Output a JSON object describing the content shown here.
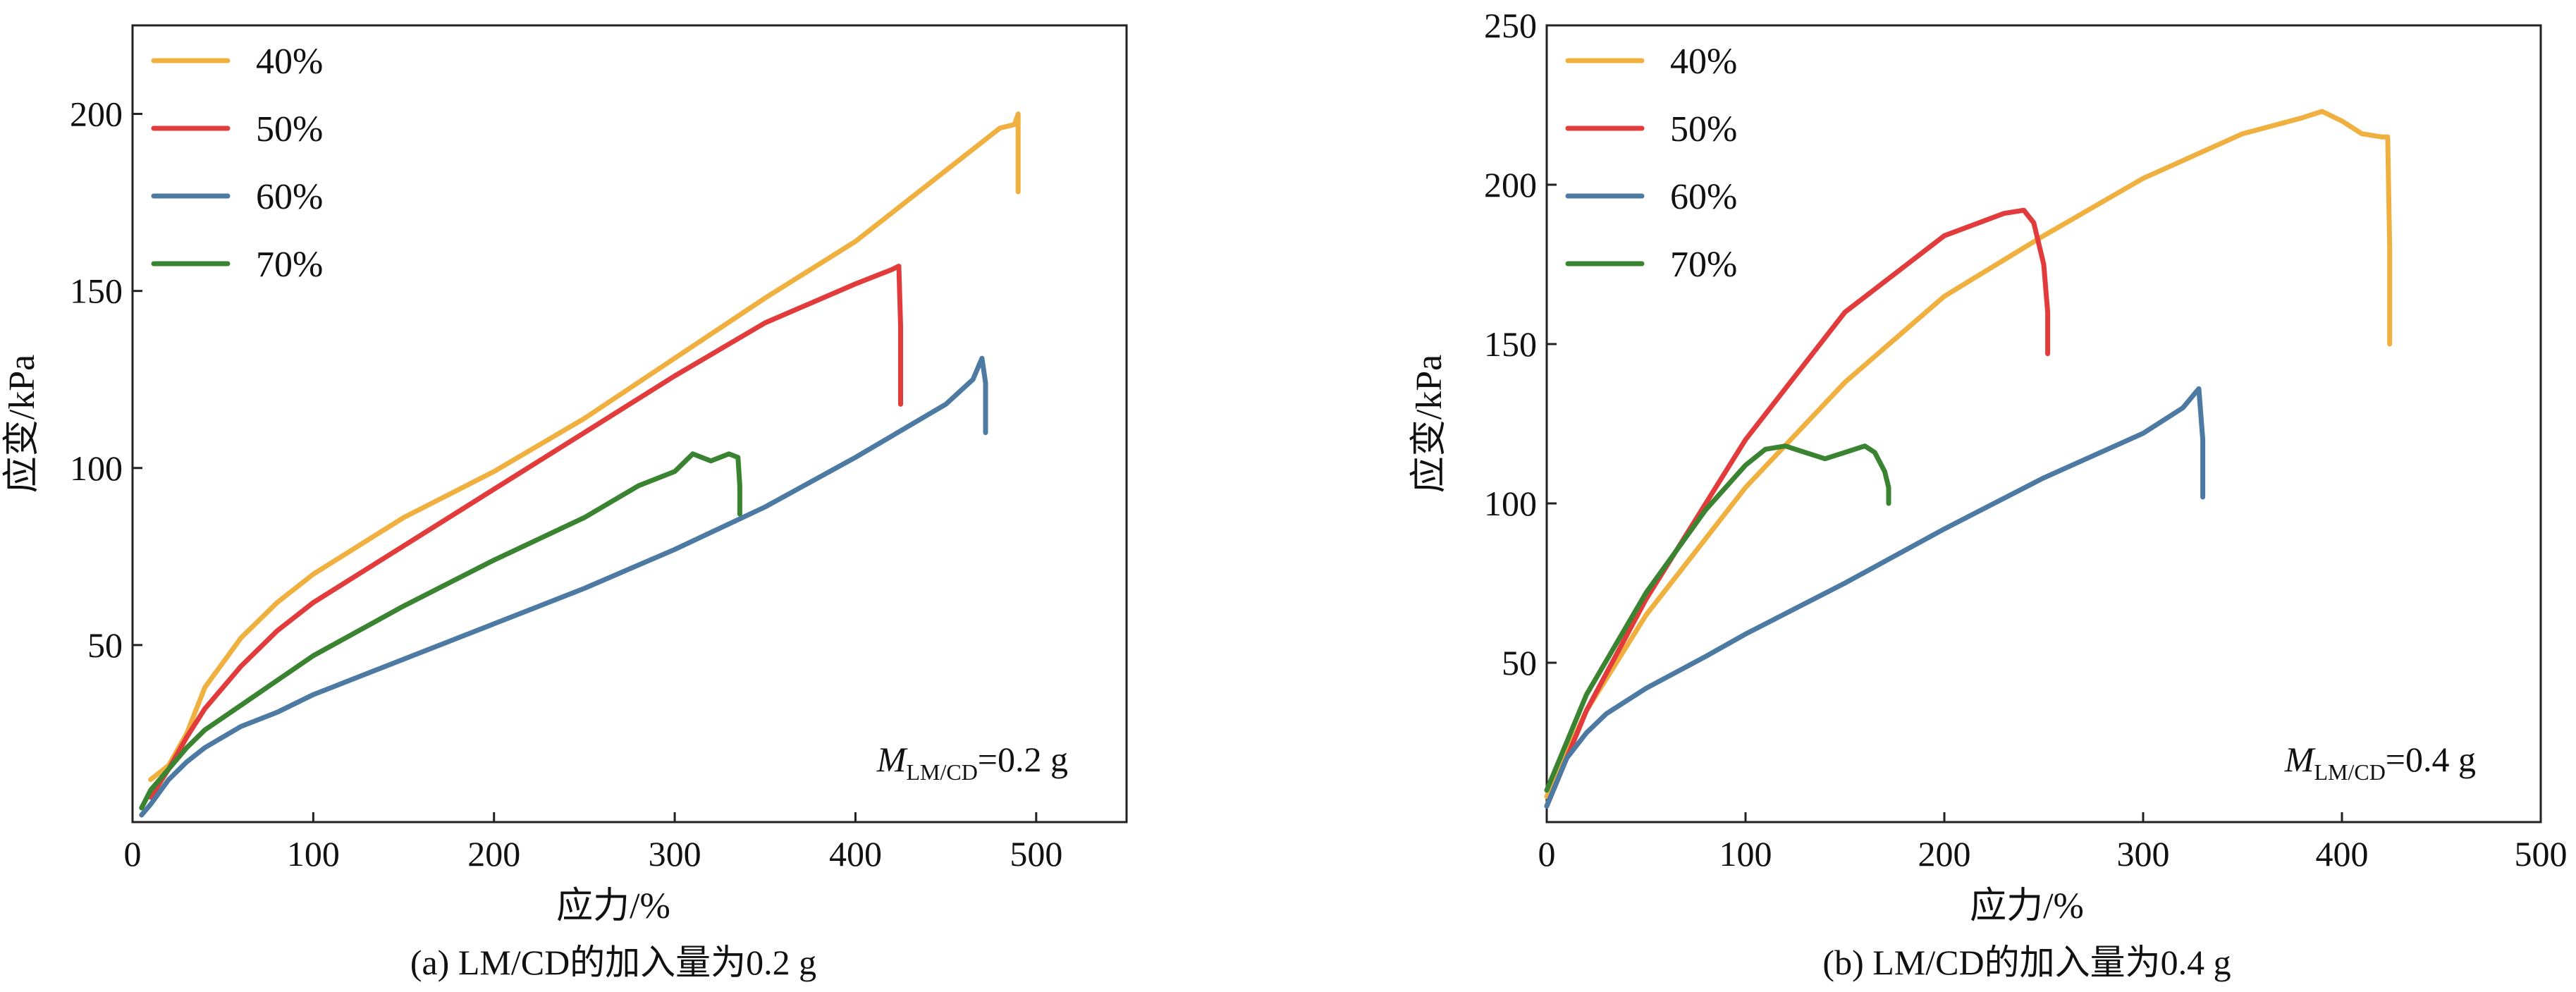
{
  "chart_data": [
    {
      "type": "line",
      "caption": "(a) LM/CD的加入量为0.2 g",
      "xlabel": "应力/%",
      "ylabel": "应变/kPa",
      "xlim": [
        0,
        550
      ],
      "ylim": [
        0,
        225
      ],
      "xticks": [
        0,
        100,
        200,
        300,
        400,
        500
      ],
      "xtick_labels": [
        "0",
        "100",
        "200",
        "300",
        "400",
        "500"
      ],
      "yticks": [
        50,
        100,
        150,
        200
      ],
      "ytick_labels": [
        "50",
        "100",
        "150",
        "200"
      ],
      "legend_position": "top-left",
      "annotation": {
        "symbol": "M",
        "subscript": "LM/CD",
        "value": "=0.2 g"
      },
      "series": [
        {
          "name": "40%",
          "color": "#F0B03F",
          "x": [
            10,
            20,
            30,
            40,
            60,
            80,
            100,
            150,
            200,
            250,
            300,
            350,
            400,
            450,
            480,
            488,
            490,
            490
          ],
          "y": [
            12,
            16,
            25,
            38,
            52,
            62,
            70,
            86,
            99,
            114,
            131,
            148,
            164,
            184,
            196,
            197,
            200,
            178
          ]
        },
        {
          "name": "50%",
          "color": "#E23B3B",
          "x": [
            10,
            20,
            30,
            40,
            60,
            80,
            100,
            150,
            200,
            250,
            300,
            350,
            400,
            420,
            424,
            425,
            425
          ],
          "y": [
            7,
            15,
            24,
            32,
            44,
            54,
            62,
            78,
            94,
            110,
            126,
            141,
            152,
            156,
            157,
            140,
            118
          ]
        },
        {
          "name": "60%",
          "color": "#4D7AA3",
          "x": [
            5,
            10,
            20,
            30,
            40,
            60,
            80,
            100,
            150,
            200,
            250,
            300,
            350,
            400,
            450,
            465,
            470,
            472,
            472
          ],
          "y": [
            2,
            5,
            12,
            17,
            21,
            27,
            31,
            36,
            46,
            56,
            66,
            77,
            89,
            103,
            118,
            125,
            131,
            124,
            110
          ]
        },
        {
          "name": "70%",
          "color": "#3A8431",
          "x": [
            5,
            10,
            20,
            30,
            40,
            60,
            80,
            100,
            150,
            200,
            250,
            280,
            300,
            310,
            320,
            330,
            335,
            336,
            336
          ],
          "y": [
            4,
            9,
            15,
            21,
            26,
            33,
            40,
            47,
            61,
            74,
            86,
            95,
            99,
            104,
            102,
            104,
            103,
            95,
            87
          ]
        }
      ]
    },
    {
      "type": "line",
      "caption": "(b) LM/CD的加入量为0.4 g",
      "xlabel": "应力/%",
      "ylabel": "应变/kPa",
      "xlim": [
        0,
        500
      ],
      "ylim": [
        0,
        250
      ],
      "xticks": [
        0,
        100,
        200,
        300,
        400,
        500
      ],
      "xtick_labels": [
        "0",
        "100",
        "200",
        "300",
        "400",
        "500"
      ],
      "yticks": [
        50,
        100,
        150,
        200,
        250
      ],
      "ytick_labels": [
        "50",
        "100",
        "150",
        "200",
        "250"
      ],
      "legend_position": "top-left",
      "annotation": {
        "symbol": "M",
        "subscript": "LM/CD",
        "value": "=0.4 g"
      },
      "series": [
        {
          "name": "40%",
          "color": "#F0B03F",
          "x": [
            0,
            20,
            50,
            100,
            150,
            200,
            250,
            300,
            350,
            380,
            390,
            400,
            410,
            420,
            423,
            424,
            424
          ],
          "y": [
            8,
            35,
            65,
            105,
            138,
            165,
            184,
            202,
            216,
            221,
            223,
            220,
            216,
            215,
            215,
            180,
            150
          ]
        },
        {
          "name": "50%",
          "color": "#E23B3B",
          "x": [
            0,
            20,
            50,
            80,
            100,
            150,
            200,
            230,
            240,
            245,
            250,
            252,
            252
          ],
          "y": [
            5,
            35,
            70,
            100,
            120,
            160,
            184,
            191,
            192,
            188,
            175,
            160,
            147
          ]
        },
        {
          "name": "60%",
          "color": "#4D7AA3",
          "x": [
            0,
            10,
            20,
            30,
            50,
            80,
            100,
            150,
            200,
            250,
            300,
            320,
            328,
            330,
            330
          ],
          "y": [
            5,
            20,
            28,
            34,
            42,
            52,
            59,
            75,
            92,
            108,
            122,
            130,
            136,
            120,
            102
          ]
        },
        {
          "name": "70%",
          "color": "#3A8431",
          "x": [
            0,
            20,
            50,
            80,
            100,
            110,
            120,
            130,
            140,
            150,
            160,
            165,
            170,
            172,
            172
          ],
          "y": [
            10,
            40,
            72,
            98,
            112,
            117,
            118,
            116,
            114,
            116,
            118,
            116,
            110,
            105,
            100
          ]
        }
      ]
    }
  ]
}
